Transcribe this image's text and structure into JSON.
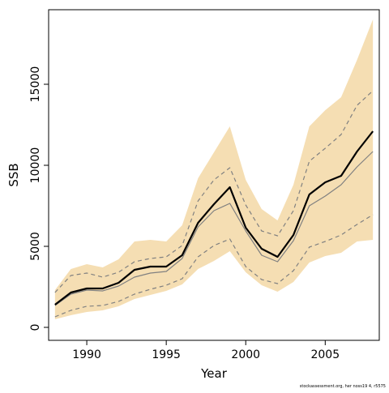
{
  "chart_data": {
    "type": "line",
    "title": "",
    "xlabel": "Year",
    "ylabel": "SSB",
    "xlim": [
      1987.6,
      2008.4
    ],
    "ylim": [
      -800,
      19600
    ],
    "x_ticks": [
      1990,
      1995,
      2000,
      2005
    ],
    "y_ticks": [
      0,
      5000,
      10000,
      15000
    ],
    "x": [
      1988,
      1989,
      1990,
      1991,
      1992,
      1993,
      1994,
      1995,
      1996,
      1997,
      1998,
      1999,
      2000,
      2001,
      2002,
      2003,
      2004,
      2005,
      2006,
      2007,
      2008
    ],
    "series": [
      {
        "role": "confidence-band",
        "upper": [
          2300,
          3600,
          3900,
          3700,
          4200,
          5300,
          5400,
          5300,
          6300,
          9200,
          10800,
          12400,
          9100,
          7300,
          6600,
          8800,
          12400,
          13400,
          14200,
          16500,
          19000
        ],
        "lower": [
          500,
          750,
          950,
          1050,
          1300,
          1750,
          2000,
          2250,
          2650,
          3600,
          4100,
          4700,
          3400,
          2600,
          2200,
          2800,
          4000,
          4400,
          4600,
          5300,
          5400
        ],
        "color": "#f5deb3"
      },
      {
        "role": "estimate",
        "values": [
          1400,
          2150,
          2400,
          2400,
          2750,
          3550,
          3750,
          3750,
          4450,
          6450,
          7600,
          8650,
          6150,
          4850,
          4350,
          5700,
          8200,
          8950,
          9350,
          10850,
          12100
        ],
        "color": "#000000"
      },
      {
        "role": "estimate-secondary",
        "values": [
          1350,
          2050,
          2300,
          2250,
          2550,
          3100,
          3350,
          3450,
          4250,
          6200,
          7200,
          7650,
          5950,
          4450,
          4050,
          5350,
          7500,
          8100,
          8800,
          9900,
          10850
        ],
        "color": "#808080"
      },
      {
        "role": "upper-bound",
        "values": [
          2150,
          3200,
          3350,
          3100,
          3400,
          4050,
          4250,
          4350,
          5050,
          7800,
          9100,
          9850,
          7550,
          5950,
          5650,
          7200,
          10250,
          11050,
          11900,
          13700,
          14600
        ],
        "color": "#808080",
        "dashed": true
      },
      {
        "role": "lower-bound",
        "values": [
          650,
          1050,
          1300,
          1350,
          1600,
          2050,
          2350,
          2600,
          3000,
          4350,
          5050,
          5450,
          3750,
          2950,
          2700,
          3500,
          4950,
          5300,
          5700,
          6350,
          6950
        ],
        "color": "#808080",
        "dashed": true
      }
    ],
    "grid": false,
    "legend": "none"
  },
  "credit": "stockassessment.org, her noss19 4, r5575"
}
